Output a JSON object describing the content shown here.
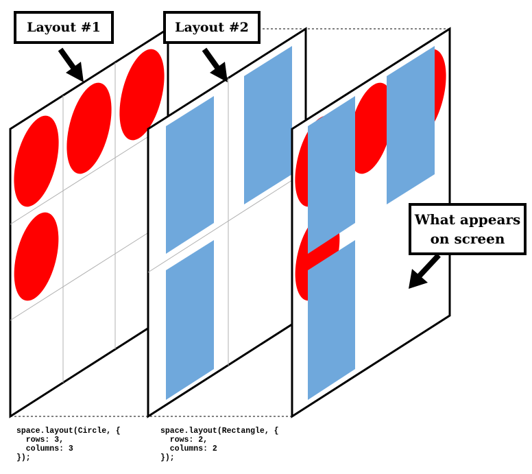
{
  "labels": {
    "layout1": "Layout #1",
    "layout2": "Layout #2",
    "screen_line1": "What appears",
    "screen_line2": "on screen"
  },
  "code": {
    "layout1": {
      "line1": "space.layout(Circle, {",
      "line2": "  rows: 3,",
      "line3": "  columns: 3",
      "line4": "});"
    },
    "layout2": {
      "line1": "space.layout(Rectangle, {",
      "line2": "  rows: 2,",
      "line3": "  columns: 2",
      "line4": "});"
    }
  },
  "colors": {
    "circle": "#ff0000",
    "rectangle": "#6fa8dc",
    "grid": "#b0b0b0",
    "outline": "#000000"
  }
}
